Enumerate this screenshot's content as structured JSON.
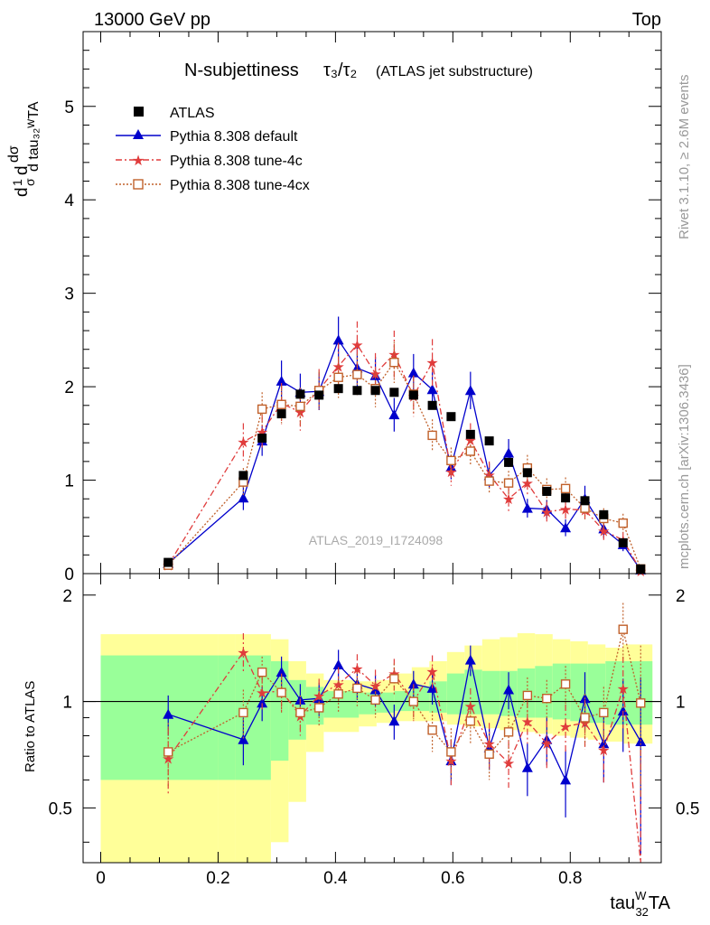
{
  "header": {
    "left": "13000 GeV pp",
    "right": "Top",
    "plot_title": "N-subjettiness",
    "title_math": "τ₃/τ₂",
    "title_sub": "(ATLAS jet substructure)",
    "watermark": "ATLAS_2019_I1724098",
    "rivet_label": "Rivet 3.1.10, ≥ 2.6M events",
    "mcplots_label": "mcplots.cern.ch [arXiv:1306.3436]"
  },
  "chart_data": {
    "type": "scatter",
    "xlabel": "tau₃₂ᵂTA",
    "ylabel_main": "1/σ dσ/d tau₃₂ᵂTA",
    "ylabel_ratio": "Ratio to ATLAS",
    "xlim": [
      -0.03,
      0.955
    ],
    "ylim_main": [
      0,
      5.8
    ],
    "ylim_ratio": [
      0.35,
      2.3
    ],
    "x_ticks": [
      "0",
      "0.2",
      "0.4",
      "0.6",
      "0.8"
    ],
    "x_tick_values": [
      0,
      0.2,
      0.4,
      0.6,
      0.8
    ],
    "main_y_ticks": [
      "0",
      "1",
      "2",
      "3",
      "4",
      "5"
    ],
    "main_y_tick_values": [
      0,
      1,
      2,
      3,
      4,
      5
    ],
    "ratio_y_ticks": [
      "0.5",
      "1",
      "2"
    ],
    "ratio_y_tick_values": [
      0.5,
      1,
      2
    ],
    "legend": [
      "ATLAS",
      "Pythia 8.308 default",
      "Pythia 8.308 tune-4c",
      "Pythia 8.308 tune-4cx"
    ],
    "x": [
      0.115,
      0.243,
      0.275,
      0.308,
      0.34,
      0.372,
      0.405,
      0.437,
      0.468,
      0.5,
      0.533,
      0.565,
      0.597,
      0.63,
      0.662,
      0.695,
      0.727,
      0.76,
      0.792,
      0.825,
      0.857,
      0.89,
      0.92
    ],
    "atlas": [
      0.12,
      1.05,
      1.45,
      1.71,
      1.92,
      1.91,
      1.98,
      1.96,
      1.96,
      1.94,
      1.91,
      1.8,
      1.68,
      1.49,
      1.42,
      1.19,
      1.08,
      0.88,
      0.81,
      0.78,
      0.63,
      0.33,
      0.05
    ],
    "series": [
      {
        "name": "Pythia 8.308 default",
        "color": "#0000cc",
        "marker": "triangle",
        "values": [
          0.11,
          0.81,
          1.42,
          2.06,
          1.94,
          1.95,
          2.5,
          2.2,
          2.12,
          1.7,
          2.15,
          1.97,
          1.14,
          1.96,
          1.05,
          1.29,
          0.7,
          0.69,
          0.49,
          0.8,
          0.48,
          0.31,
          0.04
        ],
        "errors": [
          0.02,
          0.13,
          0.16,
          0.22,
          0.2,
          0.2,
          0.25,
          0.22,
          0.2,
          0.18,
          0.2,
          0.2,
          0.13,
          0.2,
          0.13,
          0.15,
          0.1,
          0.1,
          0.09,
          0.14,
          0.1,
          0.07,
          0.02
        ],
        "ratio": [
          0.92,
          0.78,
          0.99,
          1.21,
          1.01,
          1.02,
          1.27,
          1.12,
          1.08,
          0.88,
          1.12,
          1.09,
          0.68,
          1.31,
          0.74,
          1.08,
          0.65,
          0.78,
          0.6,
          1.02,
          0.76,
          0.94,
          0.77
        ],
        "ratio_errors": [
          0.12,
          0.12,
          0.11,
          0.13,
          0.11,
          0.11,
          0.13,
          0.11,
          0.11,
          0.1,
          0.1,
          0.11,
          0.1,
          0.13,
          0.1,
          0.13,
          0.11,
          0.12,
          0.13,
          0.19,
          0.17,
          0.22,
          0.4
        ]
      },
      {
        "name": "Pythia 8.308 tune-4c",
        "color": "#e03c3c",
        "marker": "star",
        "values": [
          0.09,
          1.41,
          1.52,
          1.82,
          1.73,
          1.97,
          2.22,
          2.45,
          2.14,
          2.35,
          1.9,
          2.26,
          1.09,
          1.43,
          1.06,
          0.8,
          0.97,
          0.66,
          0.69,
          0.68,
          0.46,
          0.36,
          0.03
        ],
        "errors": [
          0.02,
          0.2,
          0.17,
          0.22,
          0.2,
          0.22,
          0.25,
          0.25,
          0.22,
          0.25,
          0.22,
          0.25,
          0.15,
          0.18,
          0.14,
          0.13,
          0.14,
          0.11,
          0.11,
          0.12,
          0.1,
          0.08,
          0.02
        ],
        "ratio": [
          0.69,
          1.38,
          1.06,
          1.07,
          0.91,
          1.04,
          1.12,
          1.24,
          1.11,
          1.2,
          1.0,
          1.22,
          0.68,
          0.97,
          0.76,
          0.67,
          0.88,
          0.76,
          0.85,
          0.87,
          0.73,
          1.09,
          0.33
        ],
        "ratio_errors": [
          0.15,
          0.18,
          0.12,
          0.13,
          0.11,
          0.12,
          0.13,
          0.12,
          0.12,
          0.12,
          0.12,
          0.13,
          0.1,
          0.12,
          0.11,
          0.1,
          0.12,
          0.12,
          0.13,
          0.14,
          0.14,
          0.25,
          0.4
        ]
      },
      {
        "name": "Pythia 8.308 tune-4cx",
        "color": "#c0602a",
        "marker": "square-open",
        "values": [
          0.09,
          0.98,
          1.76,
          1.81,
          1.79,
          1.96,
          2.1,
          2.13,
          1.98,
          2.26,
          1.92,
          1.48,
          1.21,
          1.31,
          0.99,
          0.97,
          1.13,
          0.9,
          0.91,
          0.7,
          0.59,
          0.54,
          0.05
        ],
        "errors": [
          0.02,
          0.15,
          0.18,
          0.2,
          0.2,
          0.2,
          0.22,
          0.22,
          0.2,
          0.22,
          0.2,
          0.17,
          0.14,
          0.15,
          0.13,
          0.13,
          0.14,
          0.12,
          0.12,
          0.12,
          0.11,
          0.1,
          0.02
        ],
        "ratio": [
          0.72,
          0.93,
          1.21,
          1.06,
          0.93,
          0.96,
          1.05,
          1.09,
          1.01,
          1.16,
          1.0,
          0.83,
          0.72,
          0.88,
          0.71,
          0.82,
          1.04,
          1.02,
          1.12,
          0.9,
          0.93,
          1.6,
          0.99
        ],
        "ratio_errors": [
          0.15,
          0.15,
          0.13,
          0.13,
          0.11,
          0.11,
          0.12,
          0.12,
          0.11,
          0.12,
          0.11,
          0.11,
          0.12,
          0.12,
          0.11,
          0.12,
          0.13,
          0.13,
          0.14,
          0.15,
          0.17,
          0.3,
          0.45
        ]
      }
    ],
    "bands": {
      "edges": [
        0.0,
        0.2,
        0.23,
        0.29,
        0.32,
        0.35,
        0.38,
        0.44,
        0.47,
        0.5,
        0.53,
        0.56,
        0.59,
        0.62,
        0.65,
        0.68,
        0.71,
        0.74,
        0.77,
        0.8,
        0.83,
        0.86,
        0.89,
        0.92,
        0.94
      ],
      "green_lo": [
        0.6,
        0.6,
        0.6,
        0.68,
        0.78,
        0.86,
        0.9,
        0.92,
        0.93,
        0.94,
        0.94,
        0.93,
        0.92,
        0.92,
        0.92,
        0.91,
        0.9,
        0.9,
        0.89,
        0.88,
        0.87,
        0.86,
        0.86,
        0.86
      ],
      "green_hi": [
        1.35,
        1.35,
        1.35,
        1.3,
        1.15,
        1.1,
        1.07,
        1.06,
        1.06,
        1.07,
        1.1,
        1.14,
        1.2,
        1.23,
        1.22,
        1.22,
        1.24,
        1.26,
        1.28,
        1.28,
        1.28,
        1.3,
        1.3,
        1.3
      ],
      "yellow_lo": [
        0.3,
        0.3,
        0.3,
        0.4,
        0.52,
        0.72,
        0.82,
        0.85,
        0.87,
        0.88,
        0.88,
        0.88,
        0.86,
        0.85,
        0.84,
        0.83,
        0.82,
        0.81,
        0.8,
        0.79,
        0.78,
        0.77,
        0.76,
        0.76
      ],
      "yellow_hi": [
        1.55,
        1.55,
        1.55,
        1.5,
        1.3,
        1.2,
        1.15,
        1.14,
        1.15,
        1.2,
        1.25,
        1.3,
        1.38,
        1.44,
        1.5,
        1.52,
        1.56,
        1.55,
        1.5,
        1.48,
        1.45,
        1.42,
        1.45,
        1.45
      ]
    }
  }
}
